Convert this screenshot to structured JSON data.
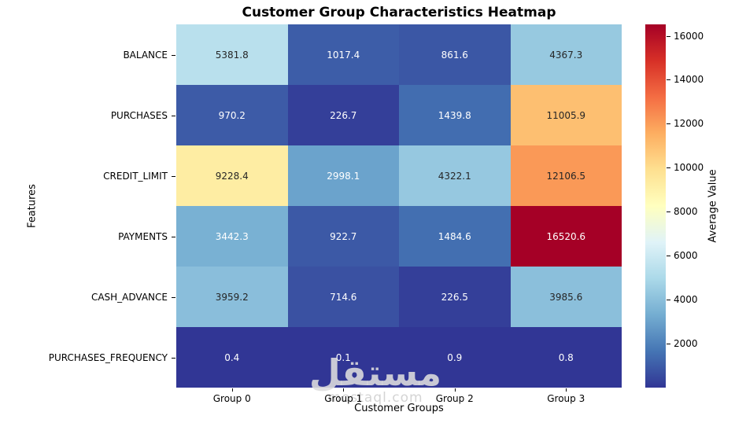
{
  "title": "Customer Group Characteristics Heatmap",
  "watermark": {
    "arabic": "مستقل",
    "domain": "mostaql.com"
  },
  "chart_data": {
    "type": "heatmap",
    "title": "Customer Group Characteristics Heatmap",
    "xlabel": "Customer Groups",
    "ylabel": "Features",
    "columns": [
      "Group 0",
      "Group 1",
      "Group 2",
      "Group 3"
    ],
    "rows": [
      "BALANCE",
      "PURCHASES",
      "CREDIT_LIMIT",
      "PAYMENTS",
      "CASH_ADVANCE",
      "PURCHASES_FREQUENCY"
    ],
    "values": [
      [
        5381.8,
        1017.4,
        861.6,
        4367.3
      ],
      [
        970.2,
        226.7,
        1439.8,
        11005.9
      ],
      [
        9228.4,
        2998.1,
        4322.1,
        12106.5
      ],
      [
        3442.3,
        922.7,
        1484.6,
        16520.6
      ],
      [
        3959.2,
        714.6,
        226.5,
        3985.6
      ],
      [
        0.4,
        0.1,
        0.9,
        0.8
      ]
    ],
    "value_decimals": 1,
    "colormap": "RdYlBu_r",
    "colormap_stops": [
      "#313695",
      "#4575b4",
      "#74add1",
      "#abd9e9",
      "#e0f3f8",
      "#ffffbf",
      "#fee090",
      "#fdae61",
      "#f46d43",
      "#d73027",
      "#a50026"
    ],
    "vmin": 0.1,
    "vmax": 16520.6,
    "annotation_colors": {
      "dark": "#262626",
      "light": "#ffffff"
    },
    "colorbar": {
      "label": "Average Value",
      "ticks": [
        2000,
        4000,
        6000,
        8000,
        10000,
        12000,
        14000,
        16000
      ]
    }
  }
}
